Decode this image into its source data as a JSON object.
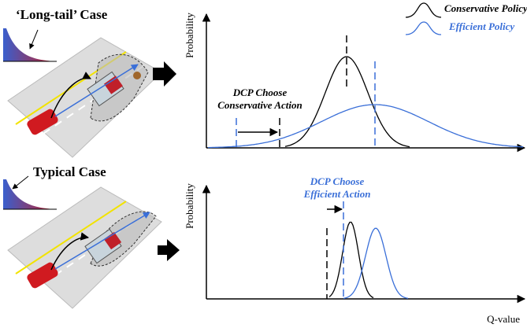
{
  "top_case": {
    "title": "‘Long-tail’ Case",
    "y_label": "Probability",
    "annotation": [
      "DCP Choose",
      "Conservative Action"
    ]
  },
  "bottom_case": {
    "title": "Typical Case",
    "y_label": "Probability",
    "annotation": [
      "DCP Choose",
      "Efficient Action"
    ]
  },
  "legend": {
    "items": [
      "Conservative Policy",
      "Efficient Policy"
    ]
  },
  "x_label": "Q-value"
}
